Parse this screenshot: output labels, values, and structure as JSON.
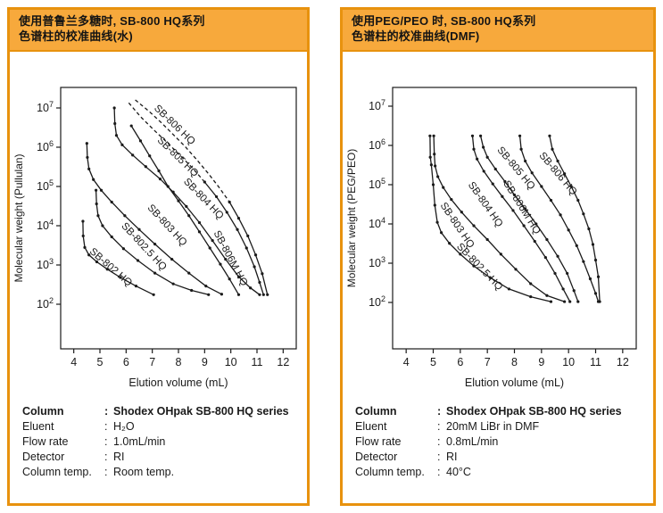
{
  "misc": {
    "colon": ":"
  },
  "colors": {
    "panel_border": "#e8920e",
    "header_fill": "#f7a93c",
    "curve": "#1a1a1a",
    "text": "#1a1a1a"
  },
  "panels": [
    {
      "id": "water",
      "header": {
        "line1": "使用普鲁兰多糖时, SB-800 HQ系列",
        "line2": "色谱柱的校准曲线(水)"
      },
      "conditions": [
        {
          "label": "Column",
          "value": "Shodex OHpak SB-800 HQ series",
          "bold": true
        },
        {
          "label": "Eluent",
          "value": "H₂O",
          "bold": false
        },
        {
          "label": "Flow rate",
          "value": "1.0mL/min",
          "bold": false
        },
        {
          "label": "Detector",
          "value": "RI",
          "bold": false
        },
        {
          "label": "Column temp.",
          "value": "Room temp.",
          "bold": false
        }
      ],
      "chart_data": {
        "type": "line",
        "title": "",
        "xlabel": "Elution volume (mL)",
        "ylabel": "Molecular weight (Pullulan)",
        "xlim": [
          3.5,
          12.5
        ],
        "xticks": [
          4,
          5,
          6,
          7,
          8,
          9,
          10,
          11,
          12
        ],
        "ytick_exponents": [
          2,
          3,
          4,
          5,
          6,
          7
        ],
        "ylim": [
          100,
          10000000
        ],
        "grid": false,
        "legend_position": "on-curve-labels",
        "series": [
          {
            "name": "SB-802 HQ",
            "dash_n": 0,
            "label": {
              "x": 4.58,
              "y": 2100,
              "rot": 41
            },
            "points": [
              [
                4.35,
                13000
              ],
              [
                4.36,
                5500
              ],
              [
                4.42,
                2800
              ],
              [
                4.58,
                1800
              ],
              [
                4.88,
                1200
              ],
              [
                5.28,
                780
              ],
              [
                5.78,
                480
              ],
              [
                6.38,
                290
              ],
              [
                7.05,
                175
              ]
            ]
          },
          {
            "name": "SB-802.5 HQ",
            "dash_n": 0,
            "label": {
              "x": 5.8,
              "y": 9700,
              "rot": 47
            },
            "points": [
              [
                4.85,
                80000
              ],
              [
                4.87,
                36000
              ],
              [
                4.93,
                18000
              ],
              [
                5.1,
                10000
              ],
              [
                5.45,
                5200
              ],
              [
                5.9,
                2600
              ],
              [
                6.45,
                1300
              ],
              [
                7.1,
                620
              ],
              [
                7.8,
                330
              ],
              [
                8.5,
                225
              ],
              [
                9.15,
                175
              ]
            ]
          },
          {
            "name": "SB-803 HQ",
            "dash_n": 0,
            "label": {
              "x": 6.8,
              "y": 28000,
              "rot": 47
            },
            "points": [
              [
                4.5,
                1250000
              ],
              [
                4.52,
                550000
              ],
              [
                4.58,
                280000
              ],
              [
                4.75,
                150000
              ],
              [
                5.05,
                80000
              ],
              [
                5.45,
                40000
              ],
              [
                5.95,
                18000
              ],
              [
                6.5,
                8000
              ],
              [
                7.1,
                3400
              ],
              [
                7.75,
                1400
              ],
              [
                8.4,
                620
              ],
              [
                9.05,
                290
              ],
              [
                9.65,
                180
              ]
            ]
          },
          {
            "name": "SB-804 HQ",
            "dash_n": 0,
            "label": {
              "x": 8.18,
              "y": 130000,
              "rot": 46
            },
            "points": [
              [
                5.55,
                10000000
              ],
              [
                5.57,
                4000000
              ],
              [
                5.63,
                2000000
              ],
              [
                5.85,
                1150000
              ],
              [
                6.25,
                630000
              ],
              [
                6.75,
                320000
              ],
              [
                7.3,
                155000
              ],
              [
                7.8,
                72000
              ],
              [
                8.3,
                31000
              ],
              [
                8.8,
                12000
              ],
              [
                9.3,
                4200
              ],
              [
                9.8,
                1400
              ],
              [
                10.3,
                500
              ],
              [
                10.75,
                260
              ],
              [
                11.1,
                175
              ]
            ]
          },
          {
            "name": "SB-805 HQ",
            "dash_n": 6,
            "label": {
              "x": 7.17,
              "y": 1450000,
              "rot": 44
            },
            "points": [
              [
                6.1,
                13500000
              ],
              [
                6.55,
                6000000
              ],
              [
                7.05,
                2800000
              ],
              [
                7.55,
                1350000
              ],
              [
                8.05,
                630000
              ],
              [
                8.55,
                290000
              ],
              [
                9.0,
                130000
              ],
              [
                9.45,
                55000
              ],
              [
                9.85,
                22000
              ],
              [
                10.25,
                8000
              ],
              [
                10.6,
                2700
              ],
              [
                10.9,
                900
              ],
              [
                11.1,
                360
              ],
              [
                11.25,
                175
              ]
            ]
          },
          {
            "name": "SB-806 HQ",
            "dash_n": 8,
            "label": {
              "x": 7.05,
              "y": 9500000,
              "rot": 44
            },
            "points": [
              [
                6.35,
                16000000
              ],
              [
                6.85,
                8500000
              ],
              [
                7.35,
                4200000
              ],
              [
                7.8,
                2100000
              ],
              [
                8.25,
                1050000
              ],
              [
                8.7,
                480000
              ],
              [
                9.15,
                210000
              ],
              [
                9.55,
                95000
              ],
              [
                9.95,
                40000
              ],
              [
                10.3,
                15500
              ],
              [
                10.65,
                5500
              ],
              [
                10.95,
                1800
              ],
              [
                11.2,
                600
              ],
              [
                11.4,
                175
              ]
            ]
          },
          {
            "name": "SB-806M HQ",
            "dash_n": 0,
            "label": {
              "x": 9.34,
              "y": 6600,
              "rot": 62
            },
            "points": [
              [
                6.2,
                3500000
              ],
              [
                6.55,
                1450000
              ],
              [
                6.9,
                600000
              ],
              [
                7.25,
                250000
              ],
              [
                7.6,
                100000
              ],
              [
                8.0,
                43000
              ],
              [
                8.4,
                18000
              ],
              [
                8.8,
                7000
              ],
              [
                9.2,
                2700
              ],
              [
                9.6,
                1050
              ],
              [
                9.95,
                440
              ],
              [
                10.3,
                175
              ]
            ]
          }
        ]
      }
    },
    {
      "id": "dmf",
      "header": {
        "line1": "使用PEG/PEO 时, SB-800 HQ系列",
        "line2": "色谱柱的校准曲线(DMF)"
      },
      "conditions": [
        {
          "label": "Column",
          "value": "Shodex OHpak SB-800 HQ series",
          "bold": true
        },
        {
          "label": "Eluent",
          "value": "20mM LiBr in DMF",
          "bold": false
        },
        {
          "label": "Flow rate",
          "value": "0.8mL/min",
          "bold": false
        },
        {
          "label": "Detector",
          "value": "RI",
          "bold": false
        },
        {
          "label": "Column temp.",
          "value": "40°C",
          "bold": false
        }
      ],
      "chart_data": {
        "type": "line",
        "title": "",
        "xlabel": "Elution volume (mL)",
        "ylabel": "Molecular weight (PEG/PEO)",
        "xlim": [
          3.5,
          12.5
        ],
        "xticks": [
          4,
          5,
          6,
          7,
          8,
          9,
          10,
          11,
          12
        ],
        "ytick_exponents": [
          2,
          3,
          4,
          5,
          6,
          7
        ],
        "ylim": [
          100,
          10000000
        ],
        "grid": false,
        "legend_position": "on-curve-labels",
        "series": [
          {
            "name": "SB-802.5 HQ",
            "dash_n": 0,
            "label": {
              "x": 5.85,
              "y": 2600,
              "rot": 46
            },
            "points": [
              [
                4.88,
                1750000
              ],
              [
                4.89,
                500000
              ],
              [
                4.93,
                320000
              ],
              [
                5.0,
                100000
              ],
              [
                5.06,
                30000
              ],
              [
                5.15,
                11000
              ],
              [
                5.3,
                6000
              ],
              [
                5.6,
                3200
              ],
              [
                6.0,
                1700
              ],
              [
                6.5,
                850
              ],
              [
                7.1,
                430
              ],
              [
                7.8,
                220
              ],
              [
                8.6,
                140
              ],
              [
                9.35,
                105
              ]
            ]
          },
          {
            "name": "SB-803 HQ",
            "dash_n": 0,
            "label": {
              "x": 5.25,
              "y": 30000,
              "rot": 56
            },
            "points": [
              [
                5.02,
                1750000
              ],
              [
                5.04,
                600000
              ],
              [
                5.07,
                300000
              ],
              [
                5.17,
                160000
              ],
              [
                5.37,
                85000
              ],
              [
                5.67,
                42000
              ],
              [
                6.05,
                20000
              ],
              [
                6.5,
                9000
              ],
              [
                7.0,
                4000
              ],
              [
                7.5,
                1700
              ],
              [
                8.05,
                700
              ],
              [
                8.6,
                300
              ],
              [
                9.2,
                150
              ],
              [
                9.85,
                105
              ]
            ]
          },
          {
            "name": "SB-804 HQ",
            "dash_n": 0,
            "label": {
              "x": 6.28,
              "y": 100000,
              "rot": 55
            },
            "points": [
              [
                6.45,
                1750000
              ],
              [
                6.5,
                800000
              ],
              [
                6.62,
                450000
              ],
              [
                6.87,
                220000
              ],
              [
                7.2,
                105000
              ],
              [
                7.55,
                50000
              ],
              [
                7.95,
                22000
              ],
              [
                8.35,
                9000
              ],
              [
                8.75,
                3600
              ],
              [
                9.15,
                1400
              ],
              [
                9.5,
                550
              ],
              [
                9.8,
                220
              ],
              [
                10.05,
                105
              ]
            ]
          },
          {
            "name": "SB-806M HQ",
            "dash_n": 0,
            "label": {
              "x": 7.58,
              "y": 110000,
              "rot": 58
            },
            "points": [
              [
                6.75,
                1750000
              ],
              [
                6.85,
                900000
              ],
              [
                7.0,
                500000
              ],
              [
                7.3,
                250000
              ],
              [
                7.65,
                120000
              ],
              [
                8.0,
                55000
              ],
              [
                8.4,
                24000
              ],
              [
                8.8,
                10000
              ],
              [
                9.2,
                4000
              ],
              [
                9.6,
                1500
              ],
              [
                9.95,
                550
              ],
              [
                10.2,
                200
              ],
              [
                10.35,
                105
              ]
            ]
          },
          {
            "name": "SB-805 HQ",
            "dash_n": 0,
            "label": {
              "x": 7.35,
              "y": 760000,
              "rot": 50
            },
            "points": [
              [
                8.2,
                1750000
              ],
              [
                8.25,
                800000
              ],
              [
                8.4,
                400000
              ],
              [
                8.65,
                200000
              ],
              [
                9.0,
                90000
              ],
              [
                9.35,
                40000
              ],
              [
                9.7,
                17000
              ],
              [
                10.0,
                7000
              ],
              [
                10.3,
                2800
              ],
              [
                10.55,
                1100
              ],
              [
                10.8,
                400
              ],
              [
                11.0,
                170
              ],
              [
                11.1,
                105
              ]
            ]
          },
          {
            "name": "SB-806 HQ",
            "dash_n": 0,
            "label": {
              "x": 8.9,
              "y": 550000,
              "rot": 50
            },
            "points": [
              [
                9.3,
                1750000
              ],
              [
                9.4,
                800000
              ],
              [
                9.6,
                400000
              ],
              [
                9.85,
                190000
              ],
              [
                10.1,
                90000
              ],
              [
                10.35,
                40000
              ],
              [
                10.55,
                18000
              ],
              [
                10.75,
                7500
              ],
              [
                10.9,
                3000
              ],
              [
                11.0,
                1200
              ],
              [
                11.1,
                450
              ],
              [
                11.15,
                105
              ]
            ]
          }
        ]
      }
    }
  ]
}
